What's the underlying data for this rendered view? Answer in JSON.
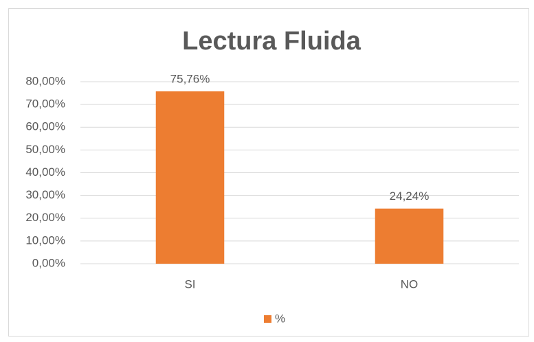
{
  "chart_data": {
    "type": "bar",
    "title": "Lectura Fluida",
    "categories": [
      "SI",
      "NO"
    ],
    "series": [
      {
        "name": "%",
        "color": "#ed7d31",
        "values": [
          75.76,
          24.24
        ],
        "value_labels": [
          "75,76%",
          "24,24%"
        ]
      }
    ],
    "ylim": [
      0,
      80
    ],
    "yticks": [
      {
        "value": 0,
        "label": "0,00%"
      },
      {
        "value": 10,
        "label": "10,00%"
      },
      {
        "value": 20,
        "label": "20,00%"
      },
      {
        "value": 30,
        "label": "30,00%"
      },
      {
        "value": 40,
        "label": "40,00%"
      },
      {
        "value": 50,
        "label": "50,00%"
      },
      {
        "value": 60,
        "label": "60,00%"
      },
      {
        "value": 70,
        "label": "70,00%"
      },
      {
        "value": 80,
        "label": "80,00%"
      }
    ],
    "grid": true,
    "legend": "bottom"
  }
}
